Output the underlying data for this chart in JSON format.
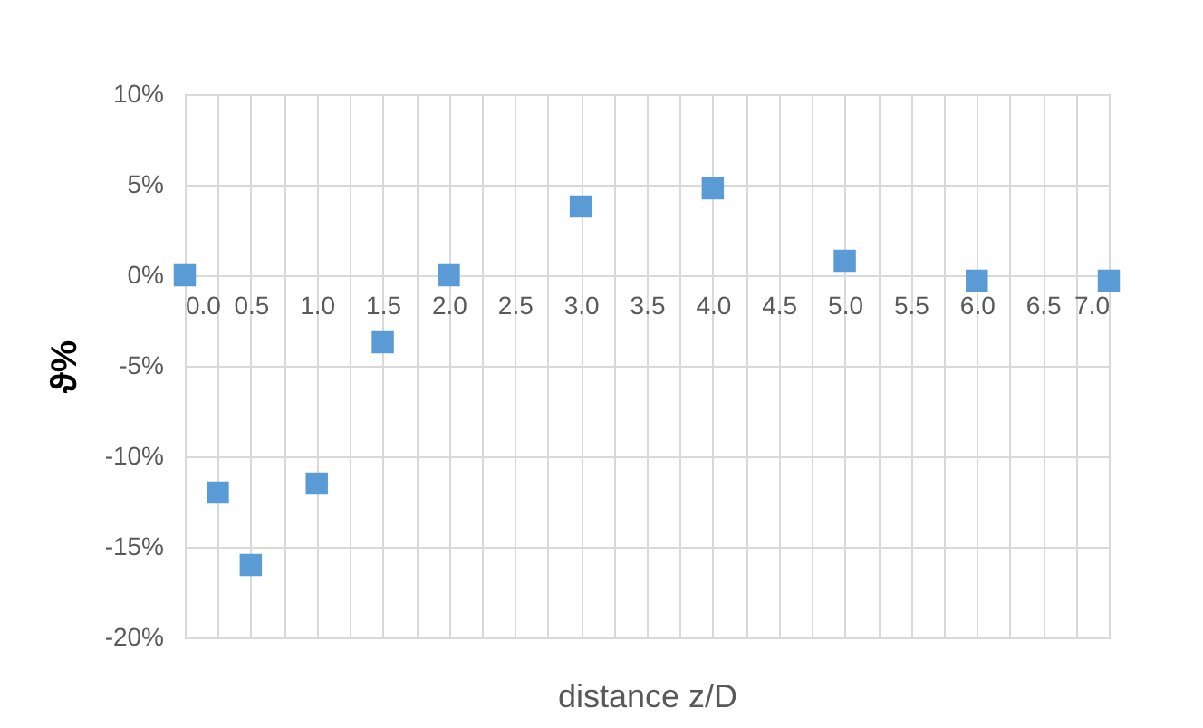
{
  "chart_data": {
    "type": "scatter",
    "xlabel": "distance z/D",
    "ylabel": "ϑ%",
    "x": [
      0,
      0.25,
      0.5,
      1,
      1.5,
      2,
      3,
      4,
      5,
      6,
      7
    ],
    "series": [
      {
        "color": "#5b9bd5",
        "values": [
          0,
          -12,
          -16,
          -11.5,
          -3.7,
          0,
          3.8,
          4.8,
          0.8,
          -0.3,
          -0.3
        ]
      }
    ],
    "marker": "square",
    "grid": true,
    "xlim": [
      0,
      7
    ],
    "xticks": [
      {
        "value": 0,
        "label": "0.0"
      },
      {
        "value": 0.25,
        "label": null
      },
      {
        "value": 0.5,
        "label": "0.5"
      },
      {
        "value": 0.75,
        "label": null
      },
      {
        "value": 1,
        "label": "1.0"
      },
      {
        "value": 1.25,
        "label": null
      },
      {
        "value": 1.5,
        "label": "1.5"
      },
      {
        "value": 1.75,
        "label": null
      },
      {
        "value": 2,
        "label": "2.0"
      },
      {
        "value": 2.25,
        "label": null
      },
      {
        "value": 2.5,
        "label": "2.5"
      },
      {
        "value": 2.75,
        "label": null
      },
      {
        "value": 3,
        "label": "3.0"
      },
      {
        "value": 3.25,
        "label": null
      },
      {
        "value": 3.5,
        "label": "3.5"
      },
      {
        "value": 3.75,
        "label": null
      },
      {
        "value": 4,
        "label": "4.0"
      },
      {
        "value": 4.25,
        "label": null
      },
      {
        "value": 4.5,
        "label": "4.5"
      },
      {
        "value": 4.75,
        "label": null
      },
      {
        "value": 5,
        "label": "5.0"
      },
      {
        "value": 5.25,
        "label": null
      },
      {
        "value": 5.5,
        "label": "5.5"
      },
      {
        "value": 5.75,
        "label": null
      },
      {
        "value": 6,
        "label": "6.0"
      },
      {
        "value": 6.25,
        "label": null
      },
      {
        "value": 6.5,
        "label": "6.5"
      },
      {
        "value": 6.75,
        "label": null
      },
      {
        "value": 7,
        "label": "7.0"
      }
    ],
    "ylim": [
      -20,
      10
    ],
    "yticks": [
      {
        "value": -20,
        "label": "-20%"
      },
      {
        "value": -15,
        "label": "-15%"
      },
      {
        "value": -10,
        "label": "-10%"
      },
      {
        "value": -5,
        "label": "-5%"
      },
      {
        "value": 0,
        "label": "0%"
      },
      {
        "value": 5,
        "label": "5%"
      },
      {
        "value": 10,
        "label": "10%"
      }
    ]
  }
}
